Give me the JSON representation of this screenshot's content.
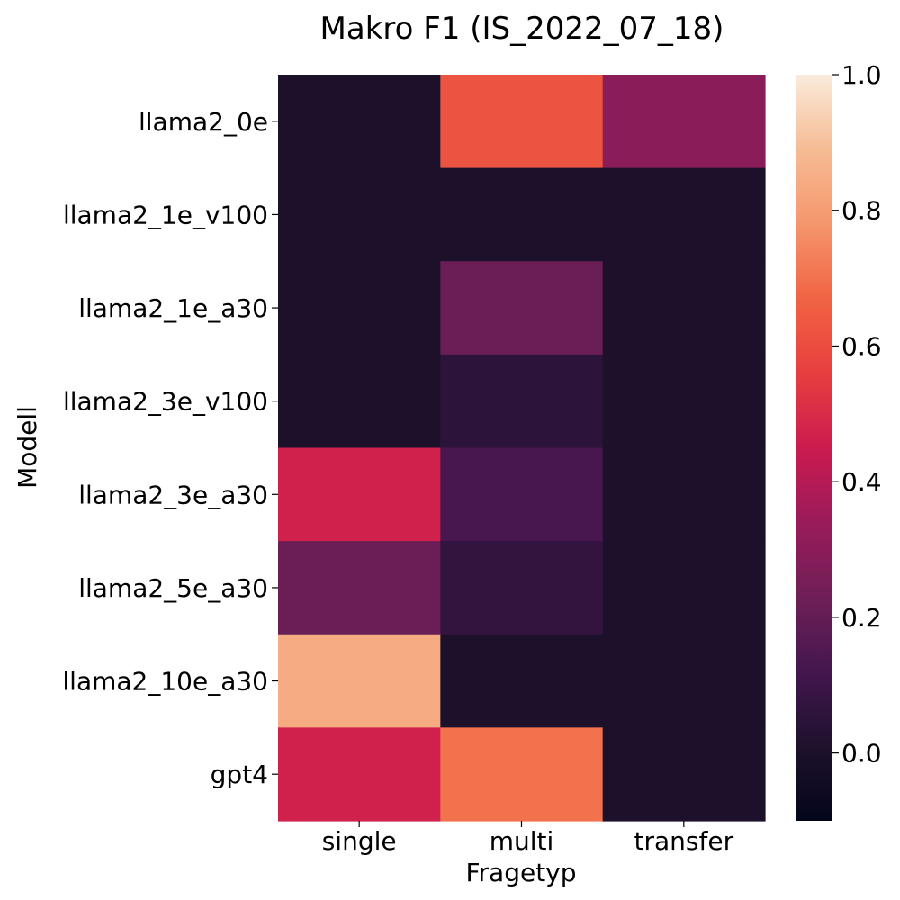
{
  "chart_data": {
    "type": "heatmap",
    "title": "Makro F1 (IS_2022_07_18)",
    "xlabel": "Fragetyp",
    "ylabel": "Modell",
    "x_categories": [
      "single",
      "multi",
      "transfer"
    ],
    "y_categories": [
      "llama2_0e",
      "llama2_1e_v100",
      "llama2_1e_a30",
      "llama2_3e_v100",
      "llama2_3e_a30",
      "llama2_5e_a30",
      "llama2_10e_a30",
      "gpt4"
    ],
    "values": [
      [
        0.0,
        0.62,
        0.3
      ],
      [
        0.0,
        0.0,
        0.0
      ],
      [
        0.0,
        0.22,
        0.0
      ],
      [
        0.0,
        0.05,
        0.0
      ],
      [
        0.47,
        0.13,
        0.0
      ],
      [
        0.22,
        0.07,
        0.0
      ],
      [
        0.84,
        0.0,
        0.0
      ],
      [
        0.47,
        0.7,
        0.0
      ]
    ],
    "colorbar": {
      "vmin": -0.1,
      "vmax": 1.0,
      "ticks": [
        0.0,
        0.2,
        0.4,
        0.6,
        0.8,
        1.0
      ],
      "tick_labels": [
        "0.0",
        "0.2",
        "0.4",
        "0.6",
        "0.8",
        "1.0"
      ],
      "colormap": "rocket"
    }
  }
}
